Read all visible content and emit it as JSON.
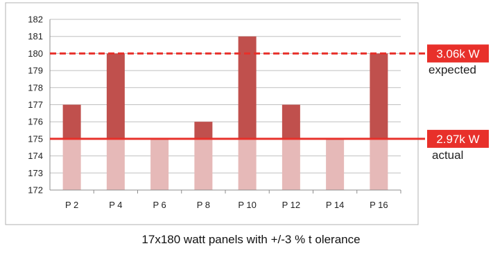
{
  "caption": "17x180 watt panels with +/-3 % t olerance",
  "colors": {
    "bar_top": "#c0504d",
    "bar_base": "#e6b9b8",
    "expected_line": "#e8302a",
    "actual_line": "#e8302a",
    "badge": "#e8302a",
    "grid": "#bfbfbf"
  },
  "chart_data": {
    "type": "bar",
    "categories": [
      "P 2",
      "P 4",
      "P 6",
      "P 8",
      "P 10",
      "P 12",
      "P 14",
      "P 16"
    ],
    "series": [
      {
        "values": [
          177,
          180,
          175,
          176,
          181,
          177,
          175,
          180
        ]
      }
    ],
    "ylim": [
      172,
      182
    ],
    "yticks": [
      "182",
      "181",
      "180",
      "179",
      "178",
      "177",
      "176",
      "175",
      "174",
      "173",
      "172"
    ],
    "grid": true,
    "base_band_top": 175,
    "reference_lines": [
      {
        "value": 180,
        "badge": "3.06k W",
        "label": "expected",
        "style": "dashed"
      },
      {
        "value": 175,
        "badge": "2.97k W",
        "label": "actual",
        "style": "solid"
      }
    ]
  }
}
